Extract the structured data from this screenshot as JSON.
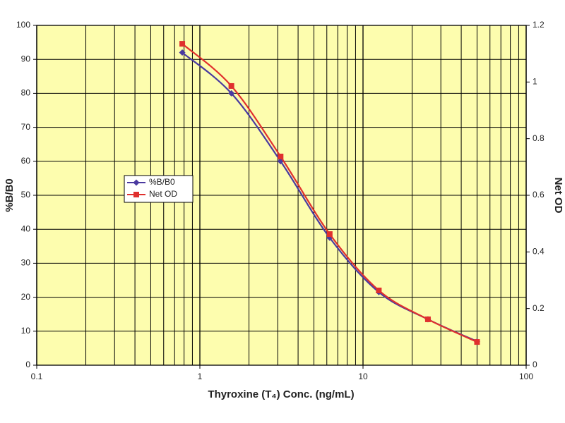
{
  "chart_data": {
    "type": "line",
    "x_label": "Thyroxine (T₄) Conc. (ng/mL)",
    "y_label": "%B/B0",
    "y2_label": "Net OD",
    "x": [
      0.78,
      1.56,
      3.125,
      6.25,
      12.5,
      25,
      50
    ],
    "series": [
      {
        "name": "%B/B0",
        "color": "#4a3aa0",
        "marker": "diamond",
        "values": [
          92,
          80,
          60,
          37.5,
          21.5,
          13.5,
          7
        ]
      },
      {
        "name": "Net OD",
        "color": "#e0302e",
        "marker": "square",
        "axis": "y2",
        "values": [
          1.135,
          0.986,
          0.737,
          0.463,
          0.264,
          0.162,
          0.082
        ]
      }
    ],
    "xlim": [
      0.1,
      100
    ],
    "xticks": [
      0.1,
      1,
      10,
      100
    ],
    "x_log": true,
    "ylim": [
      0,
      100
    ],
    "yticks": [
      0,
      10,
      20,
      30,
      40,
      50,
      60,
      70,
      80,
      90,
      100
    ],
    "y2lim": [
      0,
      1.2
    ],
    "y2ticks": [
      0,
      0.2,
      0.4,
      0.6,
      0.8,
      1,
      1.2
    ],
    "grid": true,
    "minor_grid": true,
    "smooth": true,
    "legend": "left",
    "plot_background": "#fdfdae"
  }
}
